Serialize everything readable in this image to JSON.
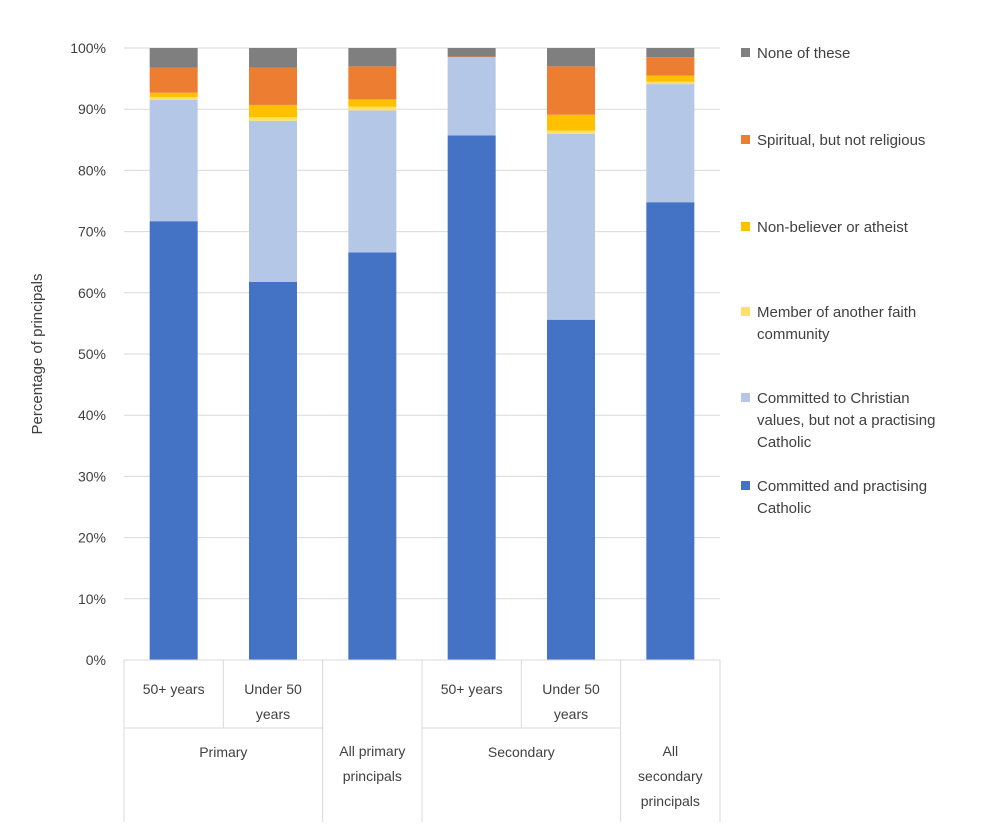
{
  "chart_data": {
    "type": "bar",
    "stacked": true,
    "title": "",
    "ylabel": "Percentage of principals",
    "xlabel": "",
    "ylim": [
      0,
      100
    ],
    "y_ticks": [
      "0%",
      "10%",
      "20%",
      "30%",
      "40%",
      "50%",
      "60%",
      "70%",
      "80%",
      "90%",
      "100%"
    ],
    "grid": "horizontal",
    "legend_position": "right",
    "categories": [
      "50+ years",
      "Under 50 years",
      "All primary principals",
      "50+ years",
      "Under 50 years",
      "All secondary principals"
    ],
    "category_lines": [
      [
        "50+ years"
      ],
      [
        "Under 50",
        "years"
      ],
      [
        "All primary",
        "principals"
      ],
      [
        "50+ years"
      ],
      [
        "Under 50",
        "years"
      ],
      [
        "All",
        "secondary",
        "principals"
      ]
    ],
    "groups": [
      {
        "label": "Primary",
        "categories": [
          0,
          1
        ]
      },
      {
        "label": "",
        "categories": [
          2
        ]
      },
      {
        "label": "Secondary",
        "categories": [
          3,
          4
        ]
      },
      {
        "label": "",
        "categories": [
          5
        ]
      }
    ],
    "series": [
      {
        "name": "Committed and practising Catholic",
        "name_lines": [
          "Committed and practising",
          "Catholic"
        ],
        "color": "#4472C4",
        "values": [
          71.7,
          61.8,
          66.6,
          85.7,
          55.6,
          74.8
        ]
      },
      {
        "name": "Committed to Christian values, but not a practising Catholic",
        "name_lines": [
          "Committed to Christian",
          "values, but not a practising",
          "Catholic"
        ],
        "color": "#B4C7E7",
        "values": [
          19.8,
          26.3,
          23.2,
          12.8,
          30.4,
          19.3
        ]
      },
      {
        "name": "Member of another faith community",
        "name_lines": [
          "Member of another faith",
          "community"
        ],
        "color": "#FFE066",
        "values": [
          0.5,
          0.6,
          0.6,
          0.0,
          0.5,
          0.4
        ]
      },
      {
        "name": "Non-believer or atheist",
        "name_lines": [
          "Non-believer or atheist"
        ],
        "color": "#FFC000",
        "values": [
          0.7,
          2.0,
          1.2,
          0.0,
          2.6,
          1.0
        ]
      },
      {
        "name": "Spiritual, but not religious",
        "name_lines": [
          "Spiritual, but not religious"
        ],
        "color": "#ED7D31",
        "values": [
          4.1,
          6.1,
          5.4,
          0.1,
          7.9,
          3.0
        ]
      },
      {
        "name": "None of these",
        "name_lines": [
          "None of these"
        ],
        "color": "#7F7F7F",
        "values": [
          3.2,
          3.2,
          3.0,
          1.4,
          3.0,
          1.5
        ]
      }
    ]
  }
}
